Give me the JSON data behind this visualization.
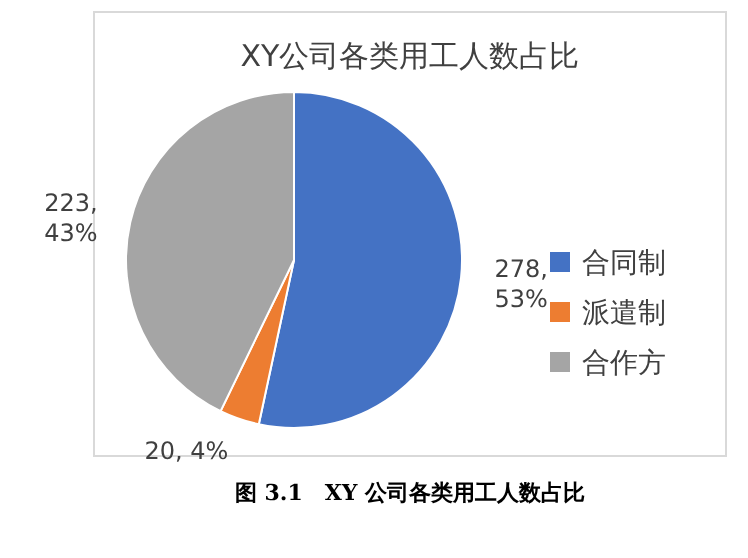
{
  "chart_data": {
    "type": "pie",
    "title": "XY公司各类用工人数占比",
    "categories": [
      "合同制",
      "派遣制",
      "合作方"
    ],
    "values": [
      278,
      20,
      223
    ],
    "colors": [
      "#4472c4",
      "#ed7d31",
      "#a5a5a5"
    ],
    "value_labels": [
      "278, 53%",
      "20, 4%",
      "223, 43%"
    ],
    "legend": "right",
    "annotations": [
      "图 3.1　XY 公司各类用工人数占比"
    ]
  }
}
